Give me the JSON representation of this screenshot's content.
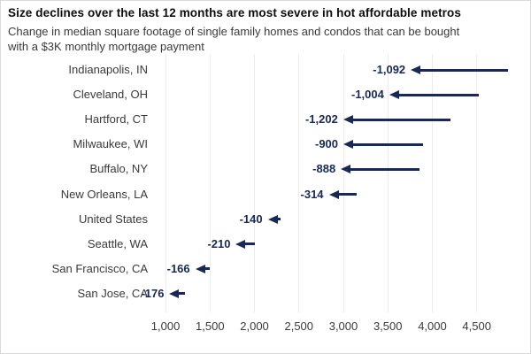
{
  "header": {
    "title": "Size declines over the last 12 months are most severe in hot affordable metros",
    "subtitle_lines": [
      "Change in median square footage of single family homes and condos that can be bought",
      "with a $3K monthly mortgage payment"
    ]
  },
  "colors": {
    "arrow_navy": "#182857",
    "gridline": "#ececec",
    "text_gray": "#3a3a3a",
    "title_black": "#0d0d0d",
    "background": "#ffffff"
  },
  "chart_data": {
    "type": "arrow",
    "description": "Horizontal left-pointing arrow chart; each arrow runs from last year's square footage (tail) to this year's square footage (tip); bold navy label shows the change.",
    "categories": [
      "Indianapolis, IN",
      "Cleveland, OH",
      "Hartford, CT",
      "Milwaukee, WI",
      "Buffalo, NY",
      "New Orleans, LA",
      "United States",
      "Seattle, WA",
      "San Francisco, CA",
      "San Jose, CA"
    ],
    "change_values": [
      -1092,
      -1004,
      -1202,
      -900,
      -888,
      -314,
      -140,
      -210,
      -166,
      -176
    ],
    "change_labels": [
      "-1,092",
      "-1,004",
      "-1,202",
      "-900",
      "-888",
      "-314",
      "-140",
      "-210",
      "-166",
      "-176"
    ],
    "arrow_start_sqft": [
      4850,
      4520,
      4200,
      3900,
      3860,
      3150,
      2290,
      2000,
      1500,
      1220
    ],
    "arrow_end_sqft": [
      3758,
      3516,
      2998,
      3000,
      2972,
      2836,
      2150,
      1790,
      1334,
      1044
    ],
    "title": "Size declines over the last 12 months are most severe in hot affordable metros",
    "subtitle": "Change in median square footage of single family homes and condos that can be bought with a $3K monthly mortgage payment",
    "xlabel": "",
    "ylabel": "",
    "xlim": [
      840,
      5100
    ],
    "xticks": [
      1000,
      1500,
      2000,
      2500,
      3000,
      3500,
      4000,
      4500
    ],
    "xtick_labels": [
      "1,000",
      "1,500",
      "2,000",
      "2,500",
      "3,000",
      "3,500",
      "4,000",
      "4,500"
    ],
    "grid": "vertical-light",
    "legend": "none"
  }
}
